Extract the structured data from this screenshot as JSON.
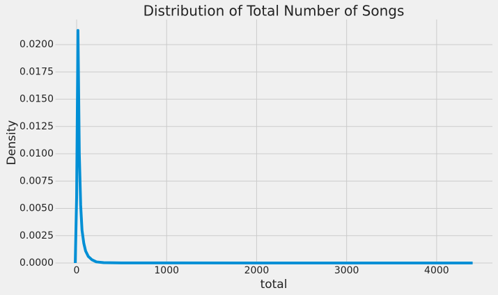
{
  "chart_data": {
    "type": "line",
    "title": "Distribution of Total Number of Songs",
    "x_label": "total",
    "y_label": "Density",
    "series": [
      {
        "name": "total",
        "color": "#008fd5",
        "x": [
          -15,
          0,
          15,
          30,
          45,
          60,
          80,
          100,
          130,
          170,
          220,
          300,
          500,
          1000,
          2000,
          3000,
          4400
        ],
        "values": [
          0,
          0.006,
          0.0213,
          0.01,
          0.0053,
          0.003,
          0.0018,
          0.0011,
          0.0006,
          0.0003,
          0.0001,
          3e-05,
          1e-05,
          5e-06,
          3e-06,
          2e-06,
          0
        ]
      }
    ],
    "xlim": [
      -236,
      4620
    ],
    "ylim": [
      0,
      0.0223
    ],
    "xticks": [
      0,
      1000,
      2000,
      3000,
      4000
    ],
    "yticks": [
      {
        "value": 0,
        "label": "0.0000"
      },
      {
        "value": 0.0025,
        "label": "0.0025"
      },
      {
        "value": 0.005,
        "label": "0.0050"
      },
      {
        "value": 0.0075,
        "label": "0.0075"
      },
      {
        "value": 0.01,
        "label": "0.0100"
      },
      {
        "value": 0.0125,
        "label": "0.0125"
      },
      {
        "value": 0.015,
        "label": "0.0150"
      },
      {
        "value": 0.0175,
        "label": "0.0175"
      },
      {
        "value": 0.02,
        "label": "0.0200"
      }
    ],
    "grid": true
  }
}
